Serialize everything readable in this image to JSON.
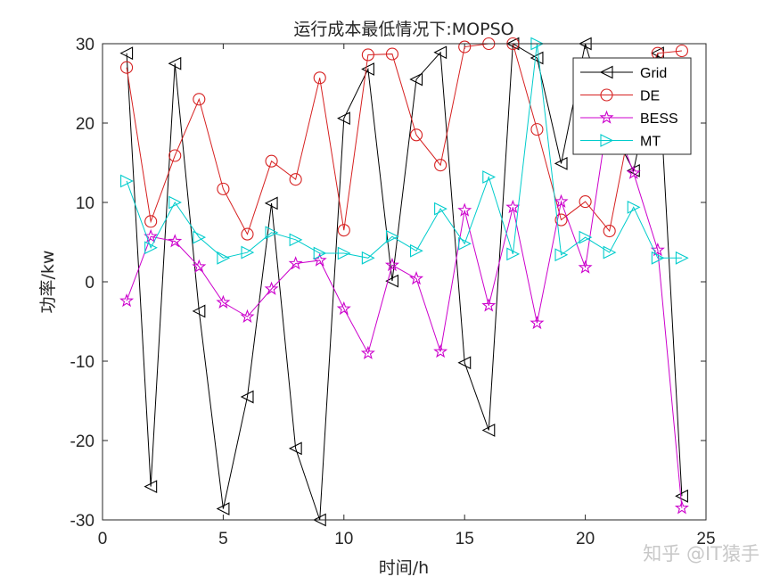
{
  "chart_data": {
    "type": "line",
    "title": "运行成本最低情况下:MOPSO",
    "xlabel": "时间/h",
    "ylabel": "功率/kw",
    "xlim": [
      0,
      25
    ],
    "ylim": [
      -30,
      30
    ],
    "xticks": [
      0,
      5,
      10,
      15,
      20,
      25
    ],
    "yticks": [
      -30,
      -20,
      -10,
      0,
      10,
      20,
      30
    ],
    "x": [
      1,
      2,
      3,
      4,
      5,
      6,
      7,
      8,
      9,
      10,
      11,
      12,
      13,
      14,
      15,
      16,
      17,
      18,
      19,
      20,
      21,
      22,
      23,
      24
    ],
    "grid": false,
    "legend_position": "top-right",
    "series": [
      {
        "name": "Grid",
        "color": "#000000",
        "marker": "triangle-left",
        "values": [
          28.8,
          -25.8,
          27.5,
          -3.7,
          -28.6,
          -14.5,
          9.9,
          -21.0,
          -30.0,
          20.6,
          26.8,
          0.1,
          25.5,
          28.9,
          -10.2,
          -18.7,
          30.0,
          28.2,
          14.9,
          30.0,
          19.8,
          14.0,
          28.8,
          -27.0
        ]
      },
      {
        "name": "DE",
        "color": "#d62020",
        "marker": "circle",
        "values": [
          27.0,
          7.6,
          15.9,
          23.0,
          11.7,
          6.0,
          15.2,
          12.9,
          25.7,
          6.5,
          28.6,
          28.7,
          18.5,
          14.7,
          29.6,
          30.0,
          30.0,
          19.2,
          7.8,
          10.1,
          6.4,
          22.0,
          28.8,
          29.1
        ]
      },
      {
        "name": "BESS",
        "color": "#cc00cc",
        "marker": "star",
        "values": [
          -2.4,
          5.7,
          5.1,
          1.9,
          -2.6,
          -4.4,
          -0.9,
          2.3,
          2.7,
          -3.4,
          -9.0,
          2.1,
          0.4,
          -8.8,
          9.0,
          -3.0,
          9.4,
          -5.2,
          10.1,
          1.8,
          22.0,
          13.7,
          4.0,
          -28.5
        ]
      },
      {
        "name": "MT",
        "color": "#00cccc",
        "marker": "triangle-right",
        "values": [
          12.7,
          4.3,
          10.0,
          5.6,
          3.0,
          3.7,
          6.2,
          5.3,
          3.6,
          3.6,
          3.0,
          5.7,
          3.9,
          9.2,
          4.8,
          13.2,
          3.5,
          30.0,
          3.4,
          5.6,
          3.7,
          9.4,
          3.0,
          3.0
        ]
      }
    ]
  },
  "watermark": "知乎 @IT猿手"
}
